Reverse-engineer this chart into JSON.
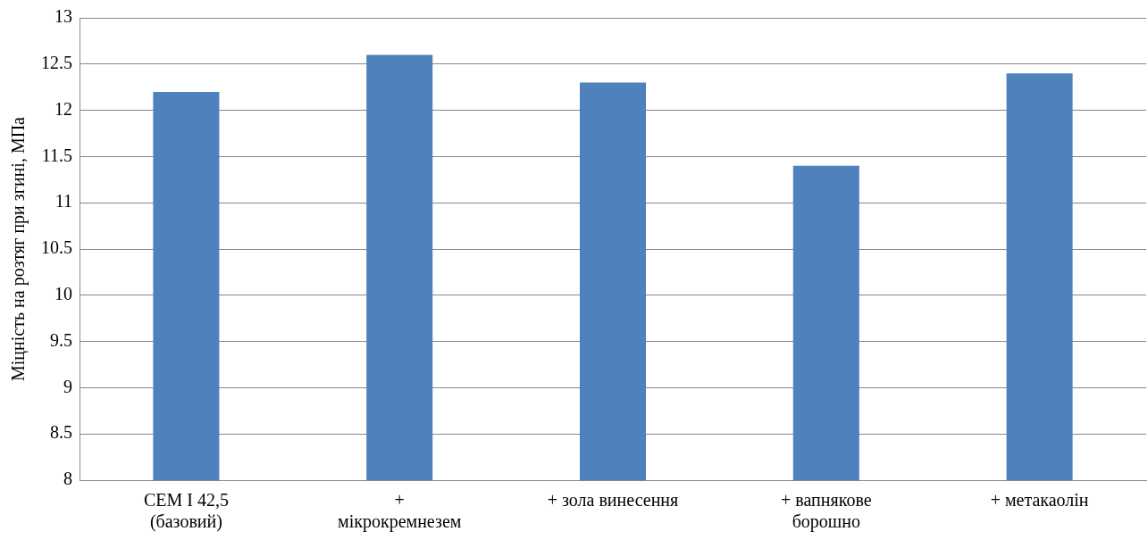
{
  "chart_data": {
    "type": "bar",
    "ylabel": "Міцність на розтяг при згині, МПа",
    "categories": [
      "CEM I 42,5 (базовий)",
      "+ мікрокремнезем",
      "+ зола винесення",
      "+ вапнякове борошно",
      "+ метакаолін"
    ],
    "values": [
      12.2,
      12.6,
      12.3,
      11.4,
      12.4
    ],
    "color": "#4f81bd",
    "ylim": [
      8,
      13
    ],
    "yticks": [
      8,
      8.5,
      9,
      9.5,
      10,
      10.5,
      11,
      11.5,
      12,
      12.5,
      13
    ],
    "grid": "y",
    "legend": false
  }
}
